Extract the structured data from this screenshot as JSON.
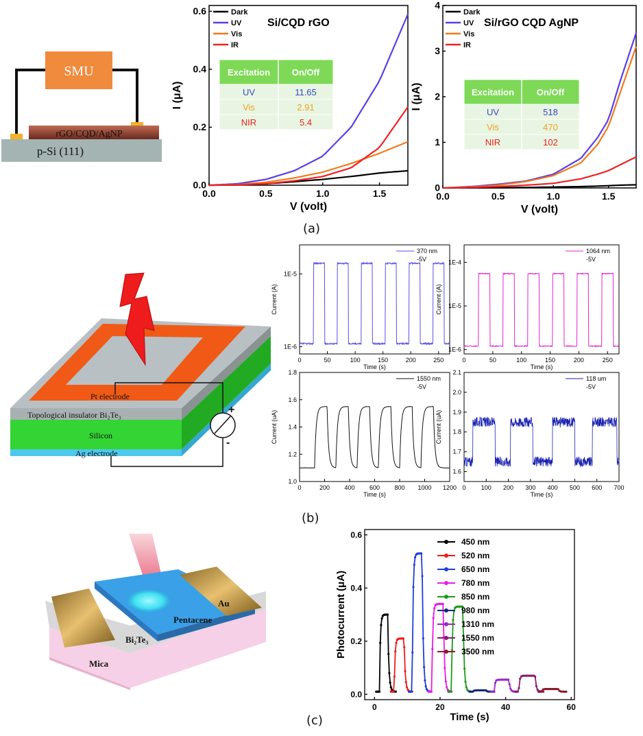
{
  "panel_labels": {
    "a": "(a)",
    "b": "(b)",
    "c": "(c)"
  },
  "schematic_a": {
    "smu": "SMU",
    "layer": "rGO/CQD/AgNP",
    "substrate": "p-Si (111)"
  },
  "schematic_b": {
    "pt": "Pt electrode",
    "ti": "Topological insulator Bi₂Te₃",
    "si": "Silicon",
    "ag": "Ag electrode",
    "plus": "+",
    "minus": "-"
  },
  "schematic_c": {
    "au": "Au",
    "pentacene": "Pentacene",
    "bi2te3": "Bi₂Te₃",
    "mica": "Mica"
  },
  "tables": [
    {
      "header": [
        "Excitation",
        "On/Off"
      ],
      "rows": [
        [
          "UV",
          "11.65"
        ],
        [
          "Vis",
          "2.91"
        ],
        [
          "NIR",
          "5.4"
        ]
      ]
    },
    {
      "header": [
        "Excitation",
        "On/Off"
      ],
      "rows": [
        [
          "UV",
          "518"
        ],
        [
          "Vis",
          "470"
        ],
        [
          "NIR",
          "102"
        ]
      ]
    }
  ],
  "colors": {
    "dark": "#000000",
    "uv": "#5a3ee8",
    "vis": "#f07a1a",
    "ir": "#ee2222",
    "table_head": "#7ed957",
    "table_row": "#e8f5e2",
    "smu": "#f08a3c"
  },
  "chart_data": [
    {
      "type": "line",
      "title": "Si/CQD rGO",
      "xlabel": "V (volt)",
      "ylabel": "I (μA)",
      "xlim": [
        0,
        1.75
      ],
      "ylim": [
        0,
        0.62
      ],
      "xticks": [
        "0.0",
        "0.5",
        "1.0",
        "1.5"
      ],
      "yticks": [
        "0.0",
        "0.2",
        "0.4",
        "0.6"
      ],
      "x": [
        0,
        0.25,
        0.5,
        0.75,
        1.0,
        1.25,
        1.5,
        1.75
      ],
      "series": [
        {
          "name": "Dark",
          "values": [
            0,
            0.001,
            0.005,
            0.012,
            0.02,
            0.03,
            0.042,
            0.05
          ]
        },
        {
          "name": "UV",
          "values": [
            0,
            0.005,
            0.02,
            0.05,
            0.1,
            0.2,
            0.36,
            0.59
          ]
        },
        {
          "name": "Vis",
          "values": [
            0,
            0.002,
            0.01,
            0.025,
            0.045,
            0.075,
            0.11,
            0.15
          ]
        },
        {
          "name": "IR",
          "values": [
            0,
            0.001,
            0.005,
            0.015,
            0.03,
            0.06,
            0.13,
            0.27
          ]
        }
      ]
    },
    {
      "type": "line",
      "title": "Si/rGO CQD AgNP",
      "xlabel": "V (volt)",
      "ylabel": "I (μA)",
      "xlim": [
        0,
        1.75
      ],
      "ylim": [
        0,
        4
      ],
      "xticks": [
        "0.0",
        "0.5",
        "1.0",
        "1.5"
      ],
      "yticks": [
        "0",
        "1",
        "2",
        "3",
        "4"
      ],
      "x": [
        0,
        0.25,
        0.5,
        0.75,
        1.0,
        1.25,
        1.4,
        1.5,
        1.6,
        1.75
      ],
      "series": [
        {
          "name": "Dark",
          "values": [
            0,
            0.002,
            0.005,
            0.01,
            0.02,
            0.03,
            0.04,
            0.05,
            0.06,
            0.07
          ]
        },
        {
          "name": "UV",
          "values": [
            0,
            0.03,
            0.08,
            0.15,
            0.3,
            0.65,
            1.1,
            1.5,
            2.3,
            3.4
          ]
        },
        {
          "name": "Vis",
          "values": [
            0,
            0.02,
            0.06,
            0.14,
            0.27,
            0.55,
            0.95,
            1.35,
            2.05,
            3.1
          ]
        },
        {
          "name": "IR",
          "values": [
            0,
            0.01,
            0.03,
            0.06,
            0.1,
            0.2,
            0.3,
            0.38,
            0.5,
            0.68
          ]
        }
      ]
    },
    {
      "type": "line",
      "legend": [
        "370 nm",
        "-5V"
      ],
      "xlabel": "Time (s)",
      "ylabel": "Current (A)",
      "xlim": [
        0,
        270
      ],
      "ylim": [
        -6.1,
        -4.6
      ],
      "log": true,
      "xticks": [
        "0",
        "50",
        "100",
        "150",
        "200",
        "250"
      ],
      "yticks": [
        "1E-6",
        "1E-5"
      ],
      "ytick_values": [
        -6,
        -5
      ],
      "on_periods": [
        [
          25,
          45
        ],
        [
          68,
          88
        ],
        [
          111,
          131
        ],
        [
          154,
          174
        ],
        [
          197,
          217
        ],
        [
          240,
          260
        ]
      ],
      "off_value": 1.1e-06,
      "on_value": 1.4e-05
    },
    {
      "type": "line",
      "legend": [
        "1064 nm",
        "-5V"
      ],
      "xlabel": "Time (s)",
      "ylabel": "Current (A)",
      "xlim": [
        0,
        270
      ],
      "ylim": [
        -6.1,
        -3.6
      ],
      "log": true,
      "xticks": [
        "0",
        "50",
        "100",
        "150",
        "200",
        "250"
      ],
      "yticks": [
        "1E-6",
        "1E-5",
        "1E-4"
      ],
      "ytick_values": [
        -6,
        -5,
        -4
      ],
      "on_periods": [
        [
          25,
          45
        ],
        [
          68,
          88
        ],
        [
          111,
          131
        ],
        [
          154,
          174
        ],
        [
          197,
          217
        ],
        [
          240,
          260
        ]
      ],
      "off_value": 1.2e-06,
      "on_value": 5.5e-05
    },
    {
      "type": "line",
      "legend": [
        "1550 nm",
        "-5V"
      ],
      "xlabel": "Time (s)",
      "ylabel": "Current (uA)",
      "xlim": [
        0,
        1200
      ],
      "ylim": [
        1.0,
        1.8
      ],
      "xticks": [
        "0",
        "200",
        "400",
        "600",
        "800",
        "1000",
        "1200"
      ],
      "yticks": [
        "1.0",
        "1.2",
        "1.4",
        "1.6",
        "1.8"
      ],
      "on_periods": [
        [
          120,
          220
        ],
        [
          290,
          390
        ],
        [
          460,
          560
        ],
        [
          630,
          730
        ],
        [
          800,
          900
        ],
        [
          970,
          1070
        ]
      ],
      "off_value": 1.1,
      "on_value": 1.55
    },
    {
      "type": "line",
      "legend": [
        "118 um",
        "-5V"
      ],
      "xlabel": "Time (s)",
      "ylabel": "Current (uA)",
      "xlim": [
        0,
        700
      ],
      "ylim": [
        1.55,
        2.1
      ],
      "xticks": [
        "0",
        "100",
        "200",
        "300",
        "400",
        "500",
        "600",
        "700"
      ],
      "yticks": [
        "1.6",
        "1.7",
        "1.8",
        "1.9",
        "2.0",
        "2.1"
      ],
      "on_periods": [
        [
          40,
          140
        ],
        [
          210,
          310
        ],
        [
          400,
          500
        ],
        [
          580,
          690
        ]
      ],
      "off_value": 1.65,
      "on_value": 1.85
    },
    {
      "type": "line",
      "xlabel": "Time (s)",
      "ylabel": "Photocurrent (μA)",
      "xlim": [
        -3,
        61
      ],
      "ylim": [
        -0.02,
        0.62
      ],
      "xticks": [
        "0",
        "20",
        "40",
        "60"
      ],
      "yticks": [
        "0.0",
        "0.2",
        "0.4",
        "0.6"
      ],
      "series": [
        {
          "name": "450 nm",
          "color": "#000000",
          "on": [
            1.5,
            4
          ],
          "peak": 0.3
        },
        {
          "name": "520 nm",
          "color": "#ee1c1c",
          "on": [
            6,
            9
          ],
          "peak": 0.21
        },
        {
          "name": "650 nm",
          "color": "#1e3ed8",
          "on": [
            11.5,
            14.5
          ],
          "peak": 0.53
        },
        {
          "name": "780 nm",
          "color": "#e81ce8",
          "on": [
            17.5,
            21
          ],
          "peak": 0.34
        },
        {
          "name": "850 nm",
          "color": "#1a9a1a",
          "on": [
            23.5,
            27
          ],
          "peak": 0.33
        },
        {
          "name": "980 nm",
          "color": "#162a7a",
          "on": [
            30,
            34
          ],
          "peak": 0.015
        },
        {
          "name": "1310 nm",
          "color": "#9a26c8",
          "on": [
            36.5,
            41
          ],
          "peak": 0.055
        },
        {
          "name": "1550 nm",
          "color": "#8a1a7a",
          "on": [
            44,
            49
          ],
          "peak": 0.07
        },
        {
          "name": "3500 nm",
          "color": "#8a1a2a",
          "on": [
            51,
            56
          ],
          "peak": 0.02
        }
      ]
    }
  ]
}
